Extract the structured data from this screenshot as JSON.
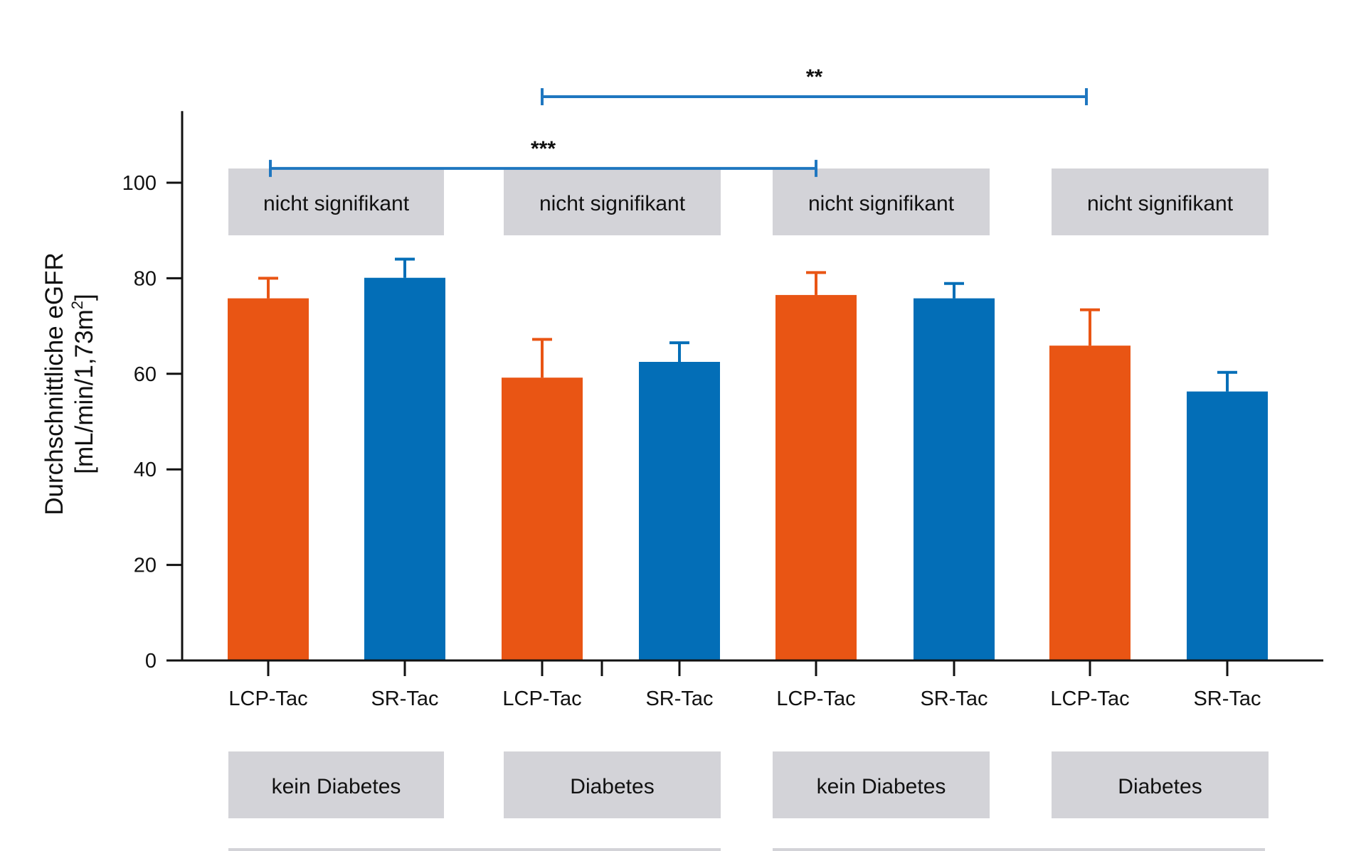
{
  "chart_data": {
    "type": "bar",
    "title": "",
    "xlabel": "",
    "ylabel_line1": "Durchschnittliche eGFR",
    "ylabel_line2_prefix": "[mL/min/1,73m",
    "ylabel_line2_sup": "2",
    "ylabel_line2_suffix": "]",
    "ylim": [
      0,
      115
    ],
    "yticks": [
      0,
      20,
      40,
      60,
      80,
      100
    ],
    "grid": false,
    "categories": [
      "LCP-Tac",
      "SR-Tac",
      "LCP-Tac",
      "SR-Tac",
      "LCP-Tac",
      "SR-Tac",
      "LCP-Tac",
      "SR-Tac"
    ],
    "values": [
      75.8,
      80.1,
      59.2,
      62.5,
      76.5,
      75.8,
      65.9,
      56.3
    ],
    "error_upper": [
      80.0,
      84.0,
      67.2,
      66.5,
      81.2,
      78.9,
      73.4,
      60.3
    ],
    "bar_series": [
      "LCP-Tac",
      "SR-Tac",
      "LCP-Tac",
      "SR-Tac",
      "LCP-Tac",
      "SR-Tac",
      "LCP-Tac",
      "SR-Tac"
    ],
    "colors": {
      "LCP-Tac": "#E95514",
      "SR-Tac": "#036EB7",
      "bracket": "#1F77C0",
      "box": "#D3D3D8"
    },
    "group_boxes_top": [
      "nicht signifikant",
      "nicht signifikant",
      "nicht signifikant",
      "nicht signifikant"
    ],
    "group_boxes_bottom": [
      "kein Diabetes",
      "Diabetes",
      "kein Diabetes",
      "Diabetes"
    ],
    "significance": [
      {
        "from_bar": 1,
        "to_bar": 5,
        "label": "***",
        "y": 103
      },
      {
        "from_bar": 3,
        "to_bar": 7,
        "label": "**",
        "y": 118
      }
    ]
  }
}
